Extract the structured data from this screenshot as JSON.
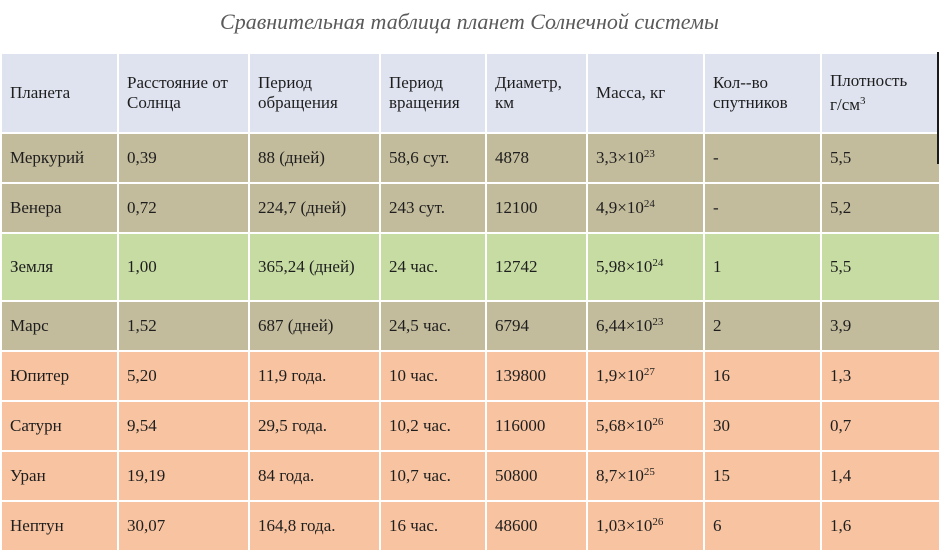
{
  "title": "Сравнительная таблица планет Солнечной системы",
  "headers": {
    "planet": "Планета",
    "distance_1": "Расстояние от",
    "distance_2": "Солнца",
    "orbit_1": "Период",
    "orbit_2": "обращения",
    "rotation_1": "Период",
    "rotation_2": "вращения",
    "diameter_1": "Диаметр,",
    "diameter_2": "км",
    "mass": "Масса, кг",
    "moons_1": "Кол--во",
    "moons_2": "спутников",
    "density_1": "Плотность",
    "density_2": "г/см",
    "density_sup": "3"
  },
  "times_sign": "×10",
  "colors": {
    "header": "#dfe3ef",
    "terrestrial": "#c2bb9c",
    "earth": "#c7dca3",
    "giants": "#f7c3a0"
  },
  "rows": [
    {
      "planet": "Меркурий",
      "distance": "0,39",
      "orbit": "88 (дней)",
      "rotation": "58,6 сут.",
      "diameter": "4878",
      "mass_base": "3,3",
      "mass_exp": "23",
      "moons": "-",
      "density": "5,5"
    },
    {
      "planet": "Венера",
      "distance": "0,72",
      "orbit": "224,7 (дней)",
      "rotation": "243 сут.",
      "diameter": "12100",
      "mass_base": "4,9",
      "mass_exp": "24",
      "moons": "-",
      "density": "5,2"
    },
    {
      "planet": "Земля",
      "distance": "1,00",
      "orbit": "365,24 (дней)",
      "rotation": "24 час.",
      "diameter": "12742",
      "mass_base": "5,98",
      "mass_exp": "24",
      "moons": "1",
      "density": "5,5"
    },
    {
      "planet": "Марс",
      "distance": "1,52",
      "orbit": "687 (дней)",
      "rotation": "24,5 час.",
      "diameter": "6794",
      "mass_base": "6,44",
      "mass_exp": "23",
      "moons": "2",
      "density": "3,9"
    },
    {
      "planet": "Юпитер",
      "distance": "5,20",
      "orbit": "11,9 года.",
      "rotation": "10 час.",
      "diameter": "139800",
      "mass_base": "1,9",
      "mass_exp": "27",
      "moons": "16",
      "density": "1,3"
    },
    {
      "planet": "Сатурн",
      "distance": "9,54",
      "orbit": "29,5 года.",
      "rotation": "10,2 час.",
      "diameter": "116000",
      "mass_base": "5,68",
      "mass_exp": "26",
      "moons": "30",
      "density": "0,7"
    },
    {
      "planet": "Уран",
      "distance": "19,19",
      "orbit": "84 года.",
      "rotation": "10,7 час.",
      "diameter": "50800",
      "mass_base": "8,7",
      "mass_exp": "25",
      "moons": "15",
      "density": "1,4"
    },
    {
      "planet": "Нептун",
      "distance": "30,07",
      "orbit": "164,8 года.",
      "rotation": "16 час.",
      "diameter": "48600",
      "mass_base": "1,03",
      "mass_exp": "26",
      "moons": "6",
      "density": "1,6"
    }
  ]
}
